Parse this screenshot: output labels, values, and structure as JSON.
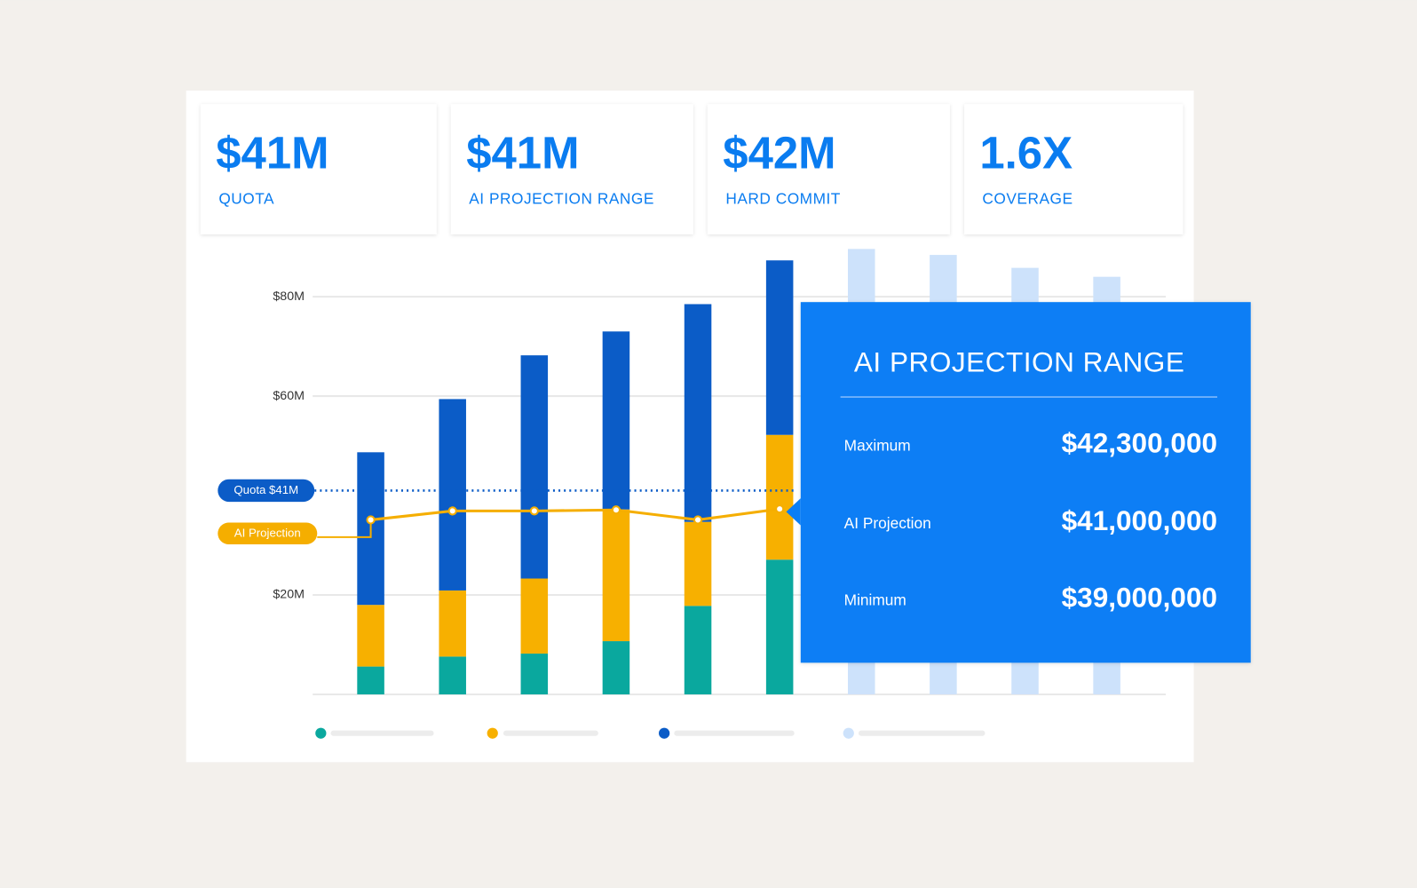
{
  "cards": [
    {
      "value": "$41M",
      "label": "QUOTA"
    },
    {
      "value": "$41M",
      "label": "AI PROJECTION RANGE"
    },
    {
      "value": "$42M",
      "label": "HARD COMMIT"
    },
    {
      "value": "1.6X",
      "label": "COVERAGE"
    }
  ],
  "chart_data": {
    "type": "bar",
    "stacked": true,
    "categories": [
      null,
      null,
      null,
      null,
      null,
      null,
      null,
      null,
      null,
      null
    ],
    "series": [
      {
        "color": "#0aa89e",
        "values": [
          5.6,
          7.6,
          8.2,
          10.7,
          17.8,
          27.1,
          null,
          null,
          null,
          null
        ]
      },
      {
        "color": "#f7b000",
        "values": [
          12.4,
          13.3,
          15.1,
          26.5,
          16.9,
          25.1,
          null,
          null,
          null,
          null
        ]
      },
      {
        "color": "#0b5cc7",
        "values": [
          30.7,
          38.5,
          44.9,
          35.8,
          43.8,
          35.1,
          null,
          null,
          null,
          null
        ]
      },
      {
        "color": "#cde2fb",
        "values": [
          null,
          null,
          null,
          null,
          null,
          null,
          89.6,
          88.4,
          85.8,
          84
        ]
      }
    ],
    "line": {
      "label": "AI Projection",
      "color": "#f5ae00",
      "values": [
        35.1,
        36.9,
        36.9,
        37.1,
        35.1,
        37.3,
        null,
        null,
        null,
        null
      ]
    },
    "reference_line": {
      "label": "Quota $41M",
      "value": 41,
      "color": "#0b5cc7"
    },
    "ylim": [
      0,
      90
    ],
    "yticks": [
      {
        "value": 20,
        "label": "$20M"
      },
      {
        "value": 60,
        "label": "$60M"
      },
      {
        "value": 80,
        "label": "$80M"
      }
    ],
    "grid": true
  },
  "tooltip": {
    "title": "AI PROJECTION RANGE",
    "rows": [
      {
        "label": "Maximum",
        "value": "$42,300,000"
      },
      {
        "label": "AI Projection",
        "value": "$41,000,000"
      },
      {
        "label": "Minimum",
        "value": "$39,000,000"
      }
    ]
  }
}
